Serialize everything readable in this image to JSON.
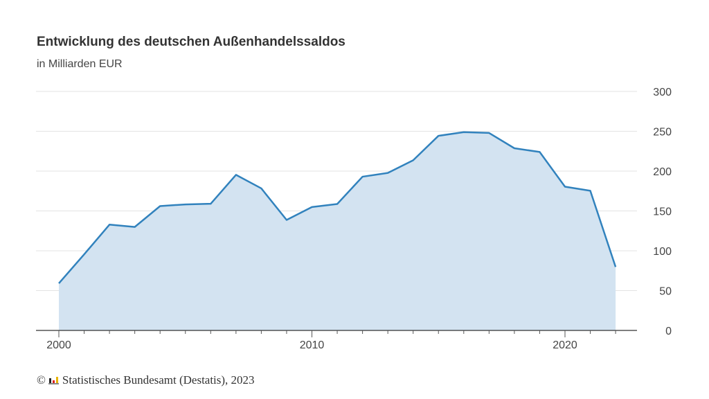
{
  "chart_data": {
    "type": "area",
    "title": "Entwicklung des deutschen Außenhandelssaldos",
    "subtitle": "in Milliarden EUR",
    "x": [
      2000,
      2001,
      2002,
      2003,
      2004,
      2005,
      2006,
      2007,
      2008,
      2009,
      2010,
      2011,
      2012,
      2013,
      2014,
      2015,
      2016,
      2017,
      2018,
      2019,
      2020,
      2021,
      2022
    ],
    "values": [
      59.1,
      95.5,
      132.8,
      129.9,
      156.1,
      158.2,
      159.0,
      195.3,
      178.3,
      138.7,
      154.9,
      158.7,
      193.0,
      197.7,
      213.6,
      244.3,
      248.9,
      247.9,
      228.7,
      224.0,
      180.4,
      175.3,
      79.7
    ],
    "ylim": [
      0,
      300
    ],
    "yticks": [
      0,
      50,
      100,
      150,
      200,
      250,
      300
    ],
    "xticks": [
      2000,
      2010,
      2020
    ],
    "grid": true,
    "y_axis_position": "right",
    "line_color": "#3182bd",
    "fill_color": "#d3e3f1"
  },
  "footer": {
    "copyright_symbol": "©",
    "source": "Statistisches Bundesamt (Destatis), 2023",
    "logo": "Destatis logo"
  }
}
